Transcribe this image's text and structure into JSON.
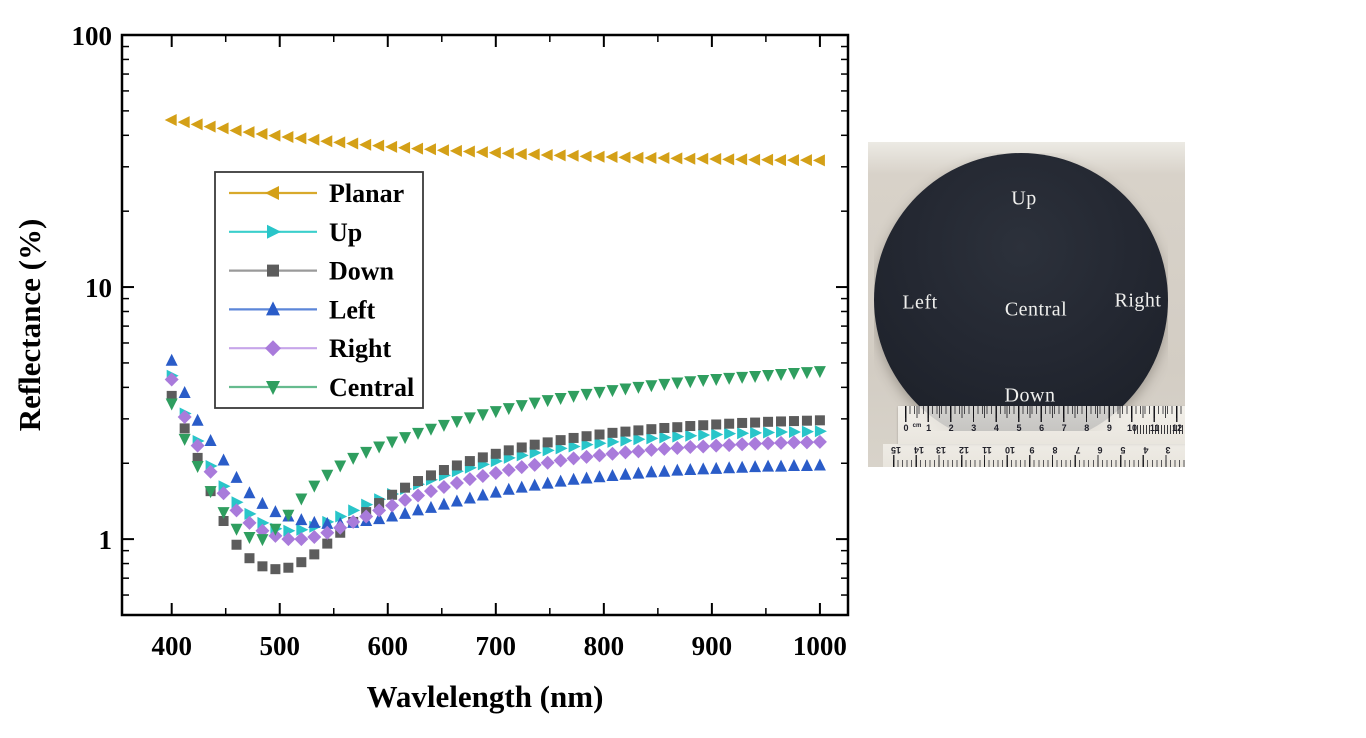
{
  "figure": {
    "background": "#ffffff"
  },
  "chart_data": {
    "type": "scatter",
    "title": "",
    "xlabel": "Wavlelength (nm)",
    "ylabel": "Reflectance (%)",
    "y_scale": "log",
    "grid": false,
    "legend_position": "upper-left-inside",
    "xlim": [
      354,
      1026
    ],
    "ylim": [
      0.5,
      100
    ],
    "x_ticks": [
      400,
      500,
      600,
      700,
      800,
      900,
      1000
    ],
    "x_minor_ticks": [
      450,
      550,
      650,
      750,
      850,
      950
    ],
    "y_ticks": [
      1,
      10,
      100
    ],
    "x": [
      400,
      412,
      424,
      436,
      448,
      460,
      472,
      484,
      496,
      508,
      520,
      532,
      544,
      556,
      568,
      580,
      592,
      604,
      616,
      628,
      640,
      652,
      664,
      676,
      688,
      700,
      712,
      724,
      736,
      748,
      760,
      772,
      784,
      796,
      808,
      820,
      832,
      844,
      856,
      868,
      880,
      892,
      904,
      916,
      928,
      940,
      952,
      964,
      976,
      988,
      1000
    ],
    "series": [
      {
        "name": "Planar",
        "marker": "triangle-left",
        "color": "#D4A017",
        "line_color": "#D8A92B",
        "values": [
          46.0,
          45.1,
          44.2,
          43.3,
          42.6,
          41.8,
          41.2,
          40.5,
          39.9,
          39.4,
          38.9,
          38.4,
          37.9,
          37.5,
          37.1,
          36.7,
          36.4,
          36.0,
          35.7,
          35.4,
          35.2,
          34.9,
          34.7,
          34.5,
          34.3,
          34.1,
          33.9,
          33.7,
          33.6,
          33.4,
          33.3,
          33.2,
          33.0,
          32.9,
          32.8,
          32.7,
          32.6,
          32.5,
          32.5,
          32.4,
          32.3,
          32.3,
          32.2,
          32.1,
          32.1,
          32.0,
          32.0,
          31.9,
          31.9,
          31.9,
          31.8
        ]
      },
      {
        "name": "Up",
        "marker": "triangle-right",
        "color": "#29C5C9",
        "line_color": "#3BCFCC",
        "values": [
          4.45,
          3.15,
          2.45,
          1.95,
          1.62,
          1.4,
          1.26,
          1.16,
          1.1,
          1.08,
          1.09,
          1.12,
          1.17,
          1.23,
          1.3,
          1.37,
          1.44,
          1.51,
          1.58,
          1.65,
          1.72,
          1.79,
          1.86,
          1.92,
          1.98,
          2.04,
          2.1,
          2.15,
          2.2,
          2.25,
          2.29,
          2.33,
          2.37,
          2.4,
          2.43,
          2.46,
          2.49,
          2.51,
          2.53,
          2.55,
          2.57,
          2.59,
          2.6,
          2.62,
          2.63,
          2.64,
          2.65,
          2.66,
          2.66,
          2.67,
          2.68
        ]
      },
      {
        "name": "Down",
        "marker": "square",
        "color": "#5C5C5C",
        "line_color": "#9A9A9A",
        "values": [
          3.7,
          2.75,
          2.1,
          1.55,
          1.18,
          0.95,
          0.84,
          0.78,
          0.76,
          0.77,
          0.81,
          0.87,
          0.96,
          1.06,
          1.17,
          1.28,
          1.39,
          1.5,
          1.6,
          1.7,
          1.79,
          1.88,
          1.96,
          2.04,
          2.11,
          2.18,
          2.25,
          2.31,
          2.37,
          2.42,
          2.47,
          2.52,
          2.56,
          2.6,
          2.64,
          2.67,
          2.7,
          2.73,
          2.76,
          2.78,
          2.81,
          2.83,
          2.85,
          2.87,
          2.89,
          2.9,
          2.92,
          2.93,
          2.94,
          2.95,
          2.96
        ]
      },
      {
        "name": "Left",
        "marker": "triangle-up",
        "color": "#2A5CC8",
        "line_color": "#5C86D8",
        "values": [
          5.1,
          3.8,
          2.95,
          2.45,
          2.05,
          1.75,
          1.52,
          1.38,
          1.28,
          1.23,
          1.19,
          1.16,
          1.15,
          1.15,
          1.16,
          1.18,
          1.2,
          1.23,
          1.26,
          1.3,
          1.33,
          1.37,
          1.41,
          1.45,
          1.49,
          1.53,
          1.57,
          1.6,
          1.63,
          1.66,
          1.69,
          1.72,
          1.74,
          1.76,
          1.78,
          1.8,
          1.82,
          1.84,
          1.85,
          1.87,
          1.88,
          1.89,
          1.9,
          1.91,
          1.92,
          1.93,
          1.94,
          1.94,
          1.95,
          1.95,
          1.96
        ]
      },
      {
        "name": "Right",
        "marker": "diamond",
        "color": "#A97BDB",
        "line_color": "#C7A6EA",
        "values": [
          4.3,
          3.05,
          2.35,
          1.85,
          1.52,
          1.3,
          1.16,
          1.08,
          1.03,
          1.0,
          1.0,
          1.02,
          1.06,
          1.11,
          1.17,
          1.23,
          1.3,
          1.36,
          1.43,
          1.49,
          1.55,
          1.61,
          1.67,
          1.73,
          1.78,
          1.83,
          1.88,
          1.93,
          1.97,
          2.01,
          2.05,
          2.09,
          2.12,
          2.15,
          2.18,
          2.21,
          2.23,
          2.26,
          2.28,
          2.3,
          2.32,
          2.33,
          2.35,
          2.36,
          2.38,
          2.39,
          2.4,
          2.41,
          2.42,
          2.42,
          2.43
        ]
      },
      {
        "name": "Central",
        "marker": "triangle-down",
        "color": "#2F9E5F",
        "line_color": "#66BB8E",
        "values": [
          3.45,
          2.5,
          1.95,
          1.55,
          1.28,
          1.1,
          1.02,
          1.0,
          1.1,
          1.25,
          1.45,
          1.63,
          1.8,
          1.96,
          2.1,
          2.22,
          2.33,
          2.44,
          2.54,
          2.64,
          2.74,
          2.84,
          2.94,
          3.04,
          3.13,
          3.22,
          3.31,
          3.4,
          3.48,
          3.56,
          3.63,
          3.7,
          3.77,
          3.84,
          3.9,
          3.96,
          4.02,
          4.08,
          4.13,
          4.18,
          4.23,
          4.28,
          4.32,
          4.36,
          4.4,
          4.44,
          4.48,
          4.52,
          4.56,
          4.6,
          4.64
        ]
      }
    ]
  },
  "photo": {
    "labels": {
      "up": "Up",
      "left": "Left",
      "central": "Central",
      "right": "Right",
      "down": "Down"
    },
    "background_color": "#d8d2c9",
    "wafer_color": "#20242c",
    "ruler_cm_numbers": [
      "0",
      "cm",
      "1",
      "2",
      "3",
      "4",
      "5",
      "6",
      "7",
      "8",
      "9",
      "10",
      "11",
      "12"
    ],
    "ruler_inverted_numbers": [
      "15",
      "14",
      "13",
      "12",
      "11",
      "10",
      "9",
      "8",
      "7",
      "6",
      "5",
      "4",
      "3"
    ]
  }
}
